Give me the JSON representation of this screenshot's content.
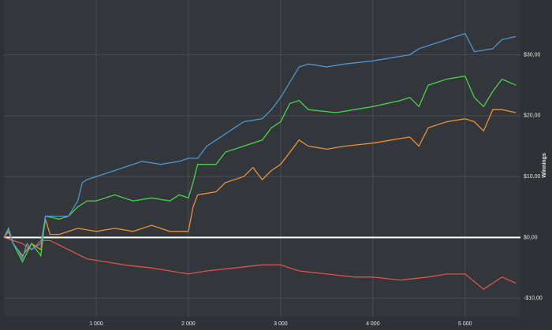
{
  "chart_data": {
    "type": "line",
    "y_label": "Winnings",
    "grid": true,
    "xlim": [
      0,
      5600
    ],
    "ylim": [
      -13,
      39
    ],
    "xticks": [
      {
        "value": 1000,
        "label": "1 000"
      },
      {
        "value": 2000,
        "label": "2 000"
      },
      {
        "value": 3000,
        "label": "3 000"
      },
      {
        "value": 4000,
        "label": "4 000"
      },
      {
        "value": 5000,
        "label": "5 000"
      }
    ],
    "yticks": [
      {
        "value": -10,
        "label": "-$10,00"
      },
      {
        "value": 0,
        "label": "$0,00"
      },
      {
        "value": 10,
        "label": "$10,00"
      },
      {
        "value": 20,
        "label": "$20,00"
      },
      {
        "value": 30,
        "label": "$30,00"
      }
    ],
    "series": [
      {
        "color": "#4f97d1",
        "x": [
          0,
          50,
          100,
          150,
          200,
          250,
          300,
          350,
          400,
          450,
          600,
          700,
          800,
          850,
          900,
          1000,
          1200,
          1400,
          1500,
          1700,
          1900,
          2000,
          2100,
          2200,
          2300,
          2500,
          2600,
          2800,
          2900,
          3000,
          3100,
          3200,
          3300,
          3500,
          3700,
          4000,
          4200,
          4400,
          4500,
          4600,
          4800,
          5000,
          5100,
          5300,
          5400,
          5550
        ],
        "values": [
          0,
          1.5,
          -1,
          -2,
          -3.5,
          -1,
          -2,
          -1.5,
          -1,
          3.5,
          3.5,
          3.5,
          6,
          9,
          9.5,
          10,
          11,
          12,
          12.5,
          12,
          12.5,
          13,
          13,
          15,
          16,
          18,
          19,
          19.5,
          21,
          23,
          25.5,
          28,
          28.5,
          28,
          28.5,
          29,
          29.5,
          30,
          31,
          31.5,
          32.5,
          33.5,
          30.5,
          31,
          32.5,
          33
        ]
      },
      {
        "color": "#4cd04c",
        "x": [
          0,
          50,
          100,
          200,
          300,
          400,
          450,
          600,
          700,
          800,
          900,
          1000,
          1200,
          1400,
          1600,
          1800,
          1900,
          2000,
          2050,
          2100,
          2300,
          2400,
          2600,
          2800,
          2900,
          3000,
          3100,
          3200,
          3300,
          3600,
          3800,
          4000,
          4300,
          4400,
          4500,
          4600,
          4800,
          5000,
          5100,
          5200,
          5300,
          5400,
          5550
        ],
        "values": [
          0,
          1.5,
          -1,
          -4,
          -1,
          -3,
          3.5,
          3,
          3.5,
          5,
          6,
          6,
          7,
          6,
          6.5,
          6,
          7,
          6.5,
          9,
          12,
          12,
          14,
          15,
          16,
          18,
          19,
          22,
          22.5,
          21,
          20.5,
          21,
          21.5,
          22.5,
          23,
          21.5,
          25,
          26,
          26.5,
          23,
          21.5,
          24,
          26,
          25
        ]
      },
      {
        "color": "#e8913a",
        "x": [
          0,
          50,
          100,
          200,
          300,
          400,
          450,
          500,
          600,
          700,
          800,
          1000,
          1200,
          1400,
          1600,
          1800,
          2000,
          2050,
          2100,
          2300,
          2400,
          2600,
          2700,
          2800,
          2900,
          3000,
          3100,
          3200,
          3300,
          3500,
          3700,
          4000,
          4200,
          4400,
          4500,
          4600,
          4800,
          5000,
          5100,
          5200,
          5300,
          5400,
          5550
        ],
        "values": [
          0,
          1,
          -1,
          -3,
          -1,
          -2,
          3,
          0.5,
          0.5,
          1,
          1.5,
          1,
          1.5,
          1,
          2,
          1,
          1,
          5,
          7,
          7.5,
          9,
          10,
          11.5,
          9.5,
          11,
          12,
          14,
          16,
          15,
          14.5,
          15,
          15.5,
          16,
          16.5,
          15,
          18,
          19,
          19.5,
          19,
          17.5,
          21,
          21,
          20.5
        ]
      },
      {
        "color": "#d9534f",
        "x": [
          0,
          200,
          300,
          400,
          500,
          700,
          900,
          1100,
          1300,
          1600,
          1800,
          2000,
          2200,
          2500,
          2800,
          3000,
          3200,
          3500,
          3800,
          4000,
          4300,
          4600,
          4800,
          5000,
          5200,
          5400,
          5550
        ],
        "values": [
          0,
          -1,
          -2,
          -0.5,
          -0.5,
          -2,
          -3.5,
          -4,
          -4.5,
          -5,
          -5.5,
          -6,
          -5.5,
          -5,
          -4.5,
          -4.5,
          -5.5,
          -6,
          -6.5,
          -6.5,
          -7,
          -6.5,
          -6,
          -6,
          -8.5,
          -6.5,
          -7.5
        ]
      }
    ]
  }
}
